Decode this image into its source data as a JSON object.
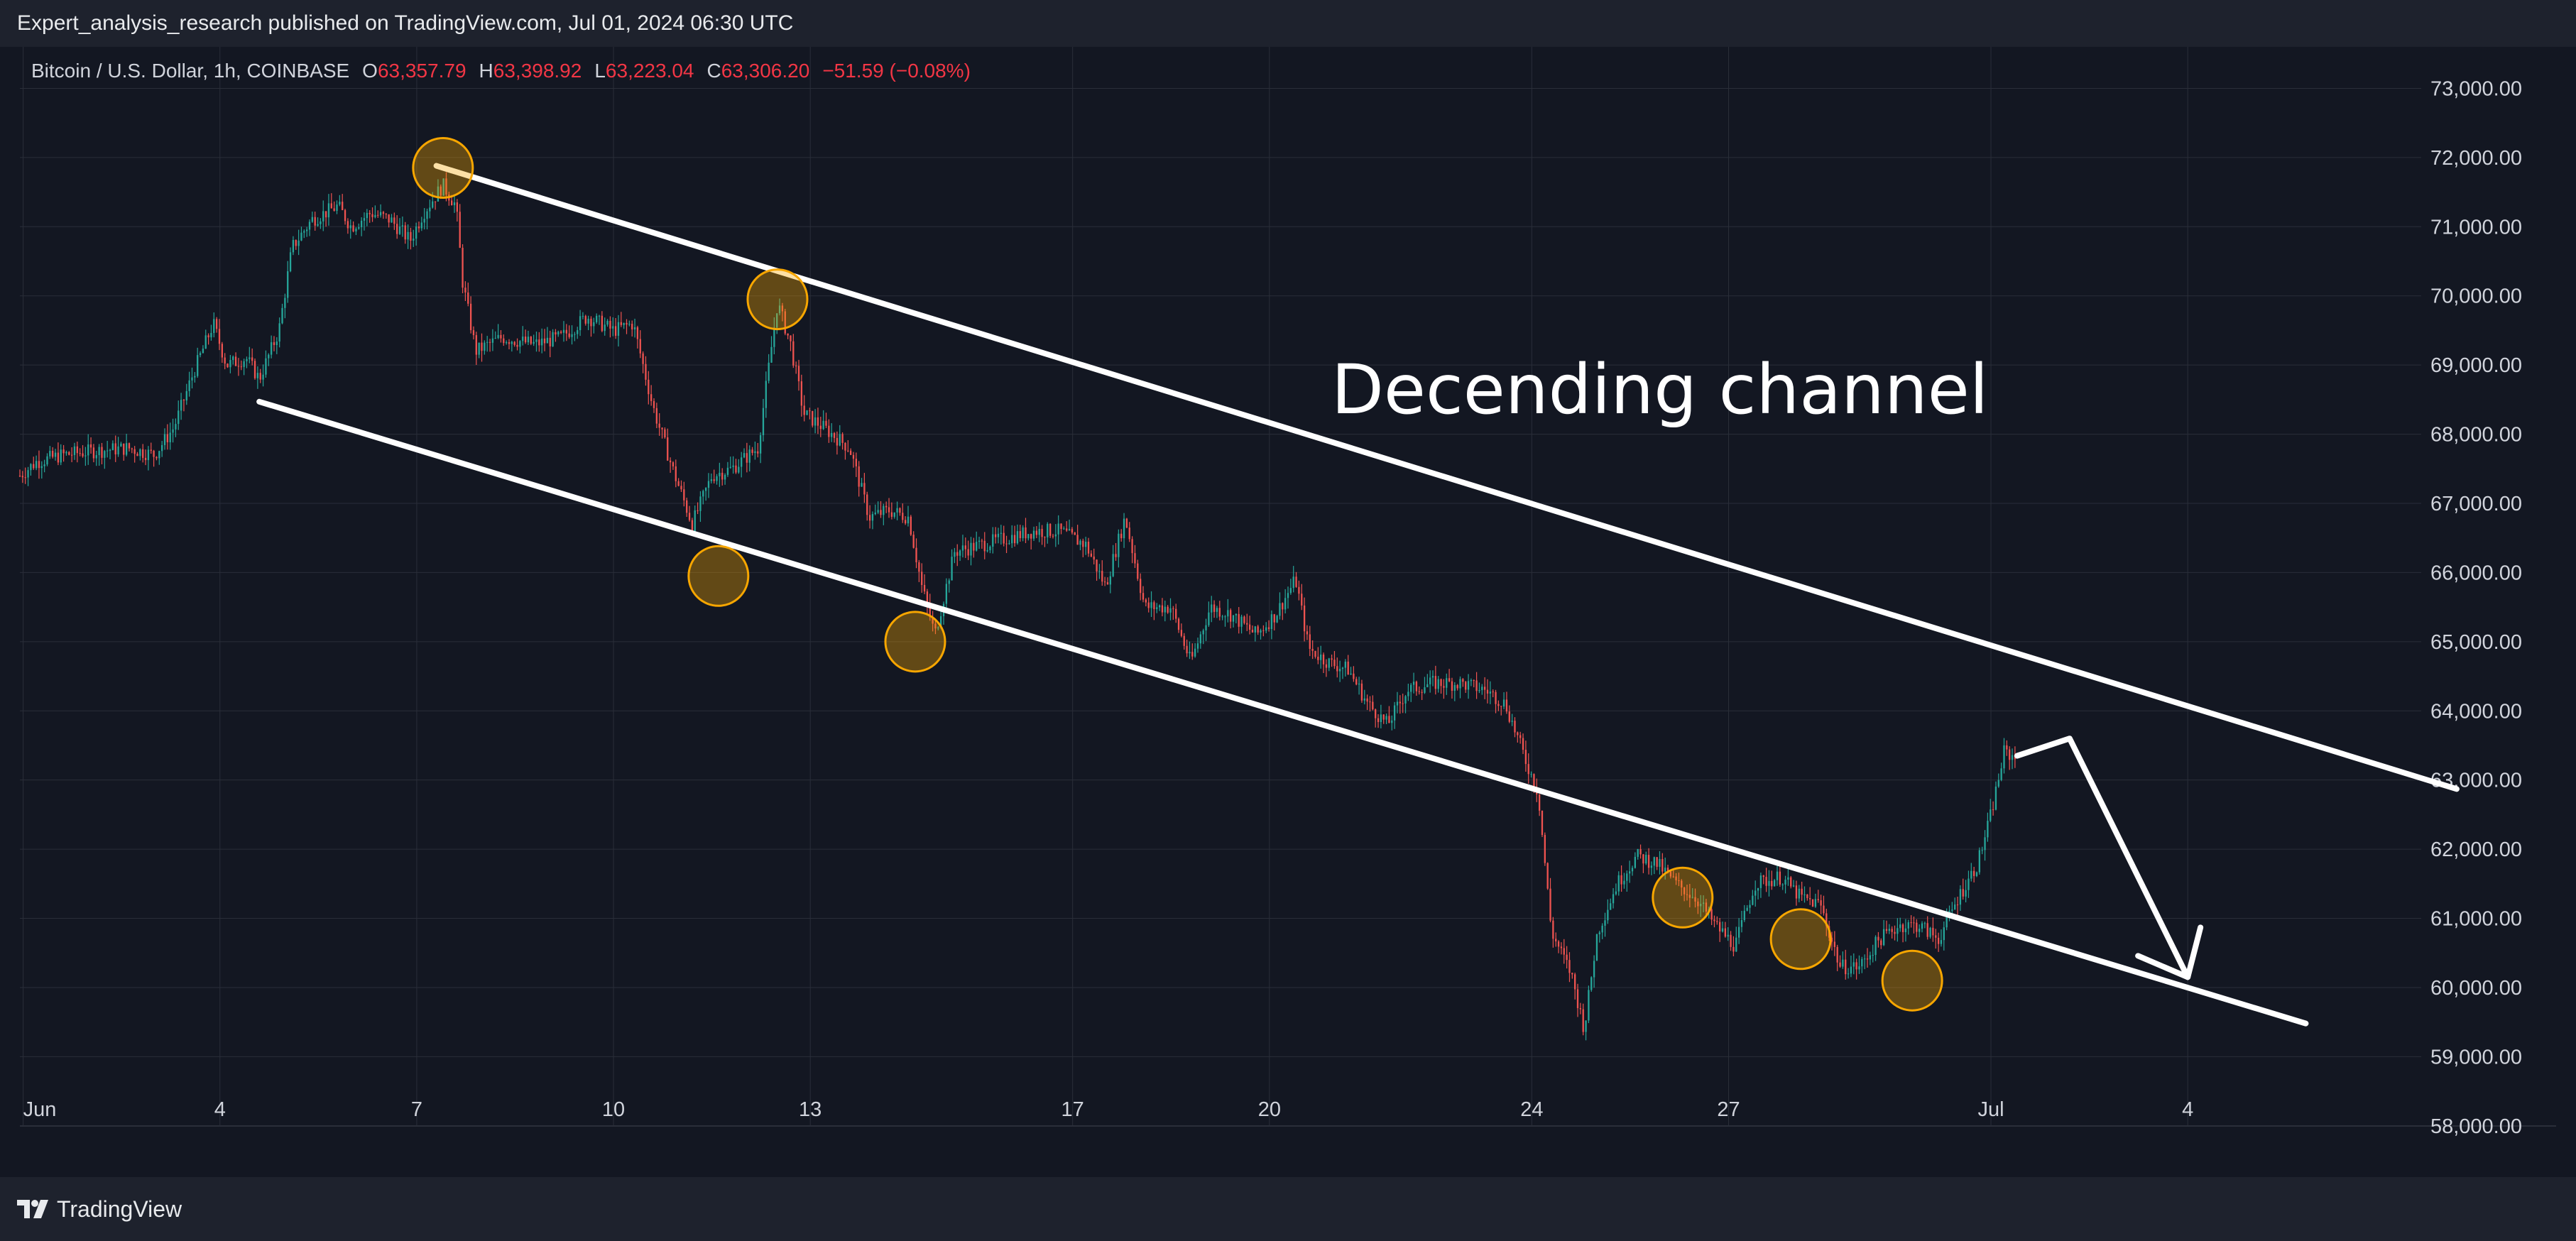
{
  "header": {
    "published_line": "Expert_analysis_research published on TradingView.com, Jul 01, 2024 06:30 UTC"
  },
  "legend": {
    "symbol": "Bitcoin / U.S. Dollar, 1h, COINBASE",
    "o_label": "O",
    "o_value": "63,357.79",
    "h_label": "H",
    "h_value": "63,398.92",
    "l_label": "L",
    "l_value": "63,223.04",
    "c_label": "C",
    "c_value": "63,306.20",
    "change": "−51.59 (−0.08%)"
  },
  "footer": {
    "brand": "TradingView",
    "brand_icon": "tradingview-logo-icon"
  },
  "colors": {
    "background": "#131722",
    "grid": "#2a2e39",
    "up": "#26a69a",
    "down": "#ef5350",
    "annotation": "#ffffff",
    "marker": "#f7a600"
  },
  "chart_data": {
    "type": "candlestick",
    "title": "",
    "ylim": [
      57300,
      73600
    ],
    "y_ticks": [
      "73,000.00",
      "72,000.00",
      "71,000.00",
      "70,000.00",
      "69,000.00",
      "68,000.00",
      "67,000.00",
      "66,000.00",
      "65,000.00",
      "64,000.00",
      "63,000.00",
      "62,000.00",
      "61,000.00",
      "60,000.00",
      "59,000.00",
      "58,000.00"
    ],
    "x_ticks": [
      {
        "label": "Jun",
        "day": 1
      },
      {
        "label": "4",
        "day": 4
      },
      {
        "label": "7",
        "day": 7
      },
      {
        "label": "10",
        "day": 10
      },
      {
        "label": "13",
        "day": 13
      },
      {
        "label": "17",
        "day": 17
      },
      {
        "label": "20",
        "day": 20
      },
      {
        "label": "24",
        "day": 24
      },
      {
        "label": "27",
        "day": 27
      },
      {
        "label": "Jul",
        "day": 31
      },
      {
        "label": "4",
        "day": 34
      }
    ],
    "xlim_days": [
      0.95,
      39.4
    ],
    "price_path": [
      [
        0.95,
        67400
      ],
      [
        1.2,
        67600
      ],
      [
        1.6,
        67700
      ],
      [
        2.0,
        67750
      ],
      [
        2.6,
        67800
      ],
      [
        3.0,
        67700
      ],
      [
        3.3,
        68100
      ],
      [
        3.6,
        68900
      ],
      [
        3.9,
        69600
      ],
      [
        4.1,
        69000
      ],
      [
        4.4,
        69100
      ],
      [
        4.6,
        68800
      ],
      [
        4.9,
        69500
      ],
      [
        5.1,
        70700
      ],
      [
        5.4,
        71100
      ],
      [
        5.8,
        71300
      ],
      [
        6.0,
        71000
      ],
      [
        6.3,
        71200
      ],
      [
        6.6,
        71100
      ],
      [
        6.9,
        70800
      ],
      [
        7.1,
        71200
      ],
      [
        7.4,
        71600
      ],
      [
        7.6,
        71300
      ],
      [
        7.7,
        70200
      ],
      [
        7.9,
        69200
      ],
      [
        8.3,
        69400
      ],
      [
        8.8,
        69300
      ],
      [
        9.2,
        69400
      ],
      [
        9.6,
        69700
      ],
      [
        10.0,
        69500
      ],
      [
        10.3,
        69600
      ],
      [
        10.6,
        68400
      ],
      [
        10.9,
        67500
      ],
      [
        11.2,
        66700
      ],
      [
        11.5,
        67400
      ],
      [
        11.8,
        67500
      ],
      [
        12.2,
        67800
      ],
      [
        12.5,
        69900
      ],
      [
        12.7,
        69300
      ],
      [
        12.9,
        68300
      ],
      [
        13.2,
        68100
      ],
      [
        13.6,
        67800
      ],
      [
        13.9,
        66800
      ],
      [
        14.2,
        66900
      ],
      [
        14.5,
        66800
      ],
      [
        14.7,
        65800
      ],
      [
        14.9,
        65100
      ],
      [
        15.2,
        66300
      ],
      [
        15.6,
        66400
      ],
      [
        16.0,
        66500
      ],
      [
        16.4,
        66600
      ],
      [
        16.8,
        66600
      ],
      [
        17.2,
        66400
      ],
      [
        17.5,
        65800
      ],
      [
        17.8,
        66800
      ],
      [
        18.1,
        65500
      ],
      [
        18.5,
        65500
      ],
      [
        18.8,
        64700
      ],
      [
        19.1,
        65500
      ],
      [
        19.4,
        65400
      ],
      [
        19.8,
        65100
      ],
      [
        20.1,
        65400
      ],
      [
        20.4,
        65900
      ],
      [
        20.6,
        64900
      ],
      [
        20.9,
        64700
      ],
      [
        21.2,
        64600
      ],
      [
        21.5,
        64100
      ],
      [
        21.8,
        63800
      ],
      [
        22.1,
        64300
      ],
      [
        22.5,
        64400
      ],
      [
        22.9,
        64400
      ],
      [
        23.3,
        64300
      ],
      [
        23.6,
        64100
      ],
      [
        23.9,
        63300
      ],
      [
        24.1,
        62800
      ],
      [
        24.3,
        60800
      ],
      [
        24.6,
        60200
      ],
      [
        24.8,
        59400
      ],
      [
        25.0,
        60800
      ],
      [
        25.3,
        61500
      ],
      [
        25.6,
        61900
      ],
      [
        25.9,
        61800
      ],
      [
        26.2,
        61500
      ],
      [
        26.5,
        61300
      ],
      [
        26.8,
        60900
      ],
      [
        27.1,
        60600
      ],
      [
        27.4,
        61500
      ],
      [
        27.8,
        61600
      ],
      [
        28.1,
        61300
      ],
      [
        28.4,
        61200
      ],
      [
        28.7,
        60300
      ],
      [
        29.0,
        60300
      ],
      [
        29.3,
        60700
      ],
      [
        29.6,
        60900
      ],
      [
        29.9,
        60900
      ],
      [
        30.2,
        60700
      ],
      [
        30.5,
        61300
      ],
      [
        30.8,
        61800
      ],
      [
        31.0,
        62500
      ],
      [
        31.2,
        63400
      ],
      [
        31.4,
        63306
      ]
    ],
    "annotations": {
      "text": "Decending channel",
      "upper_line": {
        "from": [
          7.3,
          71880
        ],
        "to": [
          38.1,
          62870
        ]
      },
      "lower_line": {
        "from": [
          4.6,
          68470
        ],
        "to": [
          35.8,
          59480
        ]
      },
      "markers": [
        {
          "day": 7.4,
          "price": 71850
        },
        {
          "day": 12.5,
          "price": 69950
        },
        {
          "day": 11.6,
          "price": 65950
        },
        {
          "day": 14.6,
          "price": 65000
        },
        {
          "day": 26.3,
          "price": 61300
        },
        {
          "day": 28.1,
          "price": 60700
        },
        {
          "day": 29.8,
          "price": 60100
        }
      ],
      "arrow": {
        "points": [
          [
            31.4,
            63350
          ],
          [
            32.2,
            63600
          ],
          [
            34.0,
            60150
          ]
        ]
      }
    }
  }
}
